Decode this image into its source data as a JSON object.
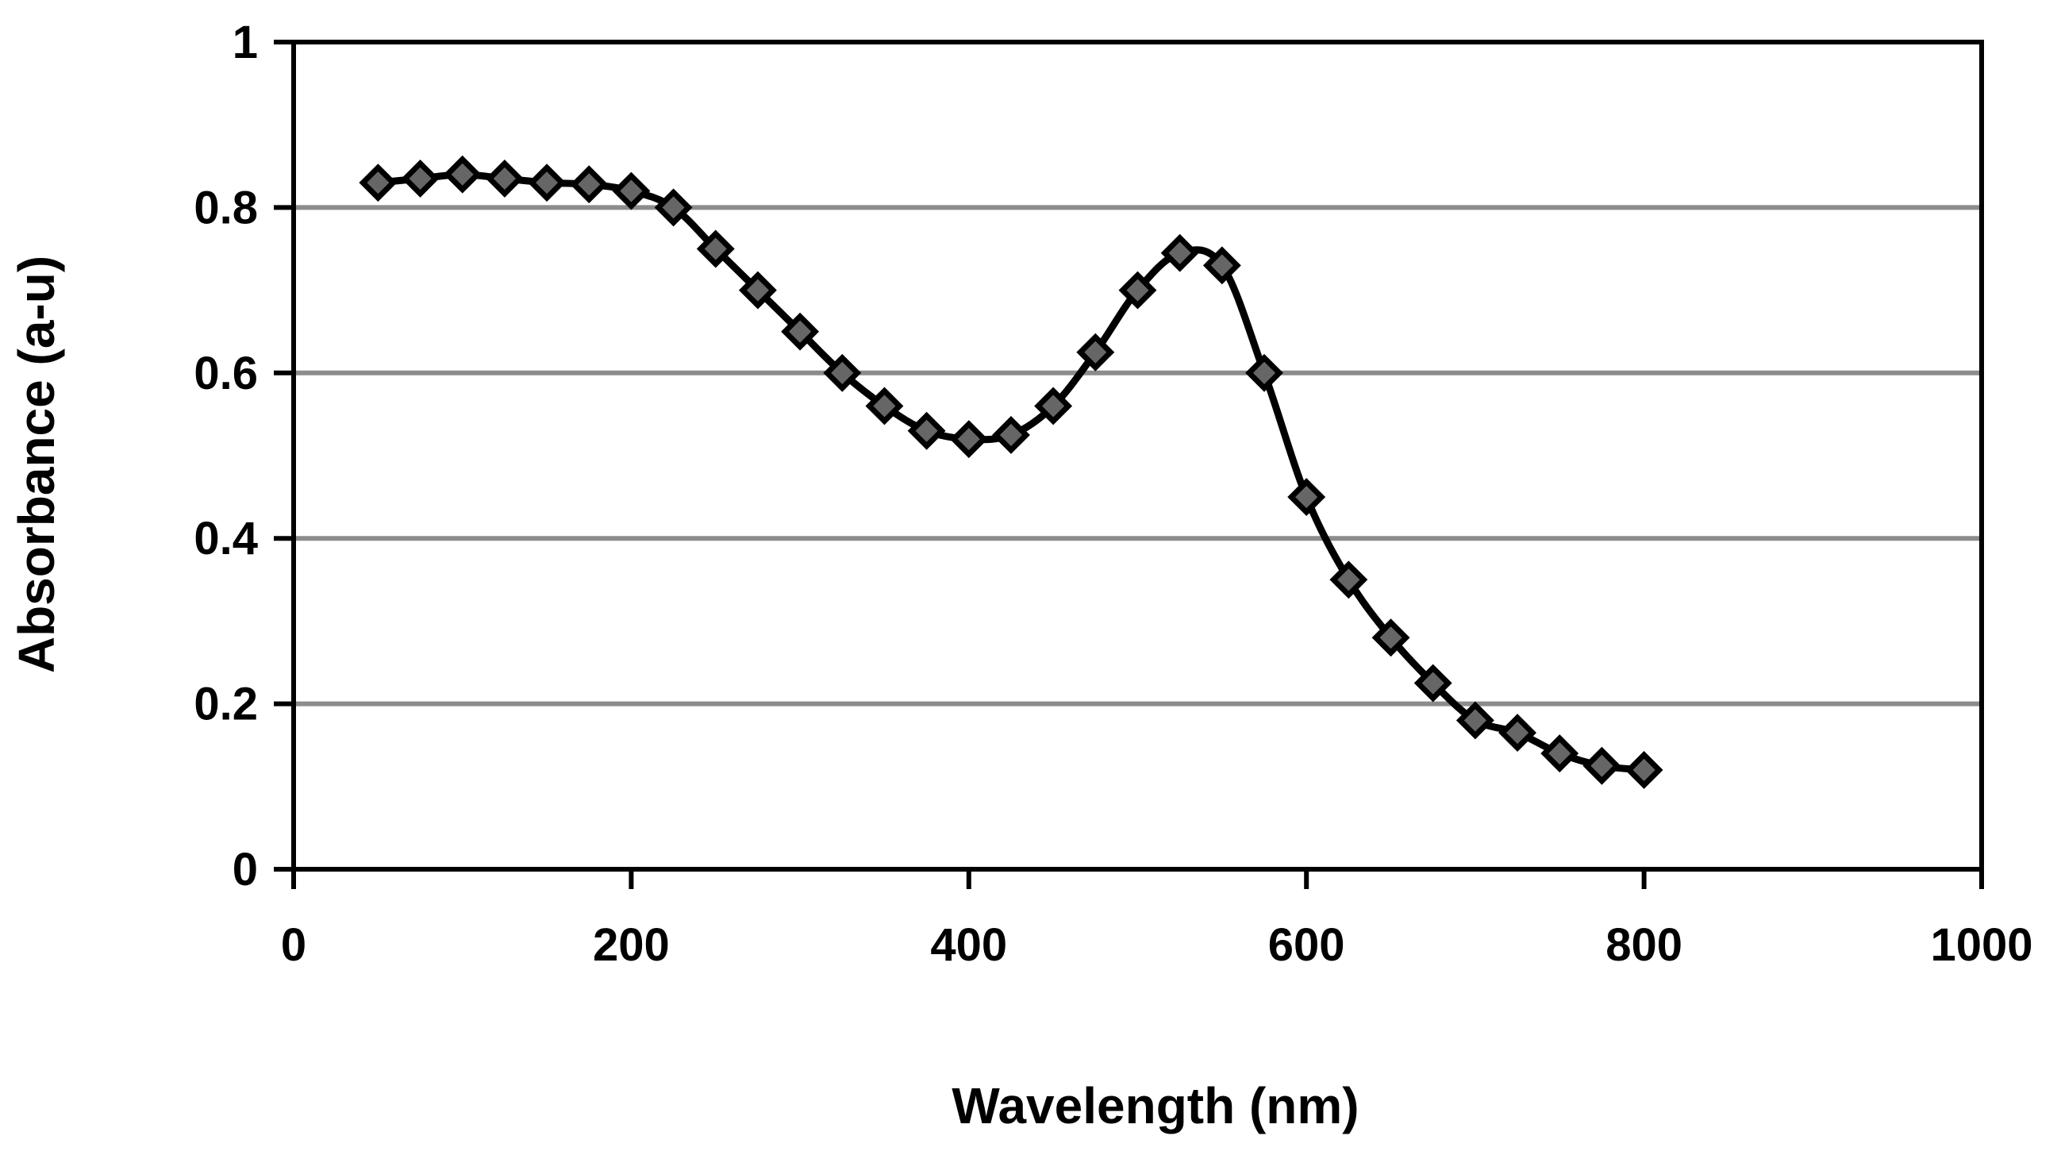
{
  "chart_data": {
    "type": "line",
    "title": "",
    "xlabel": "Wavelength (nm)",
    "ylabel": "Absorbance  (a-u)",
    "xlim": [
      0,
      1000
    ],
    "ylim": [
      0,
      1
    ],
    "x_ticks": [
      0,
      200,
      400,
      600,
      800,
      1000
    ],
    "y_ticks": [
      0,
      0.2,
      0.4,
      0.6,
      0.8,
      1
    ],
    "x_tick_labels": [
      "0",
      "200",
      "400",
      "600",
      "800",
      "1000"
    ],
    "y_tick_labels": [
      "0",
      "0.2",
      "0.4",
      "0.6",
      "0.8",
      "1"
    ],
    "grid": "horizontal",
    "legend": "none",
    "colors": {
      "line": "#000000",
      "marker_fill": "#666666",
      "marker_edge": "#000000",
      "grid": "#8c8c8c",
      "axis": "#000000"
    },
    "marker": "diamond-icon",
    "series": [
      {
        "name": "Absorbance",
        "x": [
          50,
          75,
          100,
          125,
          150,
          175,
          200,
          225,
          250,
          275,
          300,
          325,
          350,
          375,
          400,
          425,
          450,
          475,
          500,
          525,
          550,
          575,
          600,
          625,
          650,
          675,
          700,
          725,
          750,
          775,
          800
        ],
        "y": [
          0.83,
          0.835,
          0.84,
          0.835,
          0.83,
          0.828,
          0.82,
          0.8,
          0.75,
          0.7,
          0.65,
          0.6,
          0.56,
          0.53,
          0.52,
          0.525,
          0.56,
          0.625,
          0.7,
          0.745,
          0.73,
          0.6,
          0.45,
          0.35,
          0.28,
          0.225,
          0.18,
          0.165,
          0.14,
          0.125,
          0.12
        ]
      }
    ]
  }
}
